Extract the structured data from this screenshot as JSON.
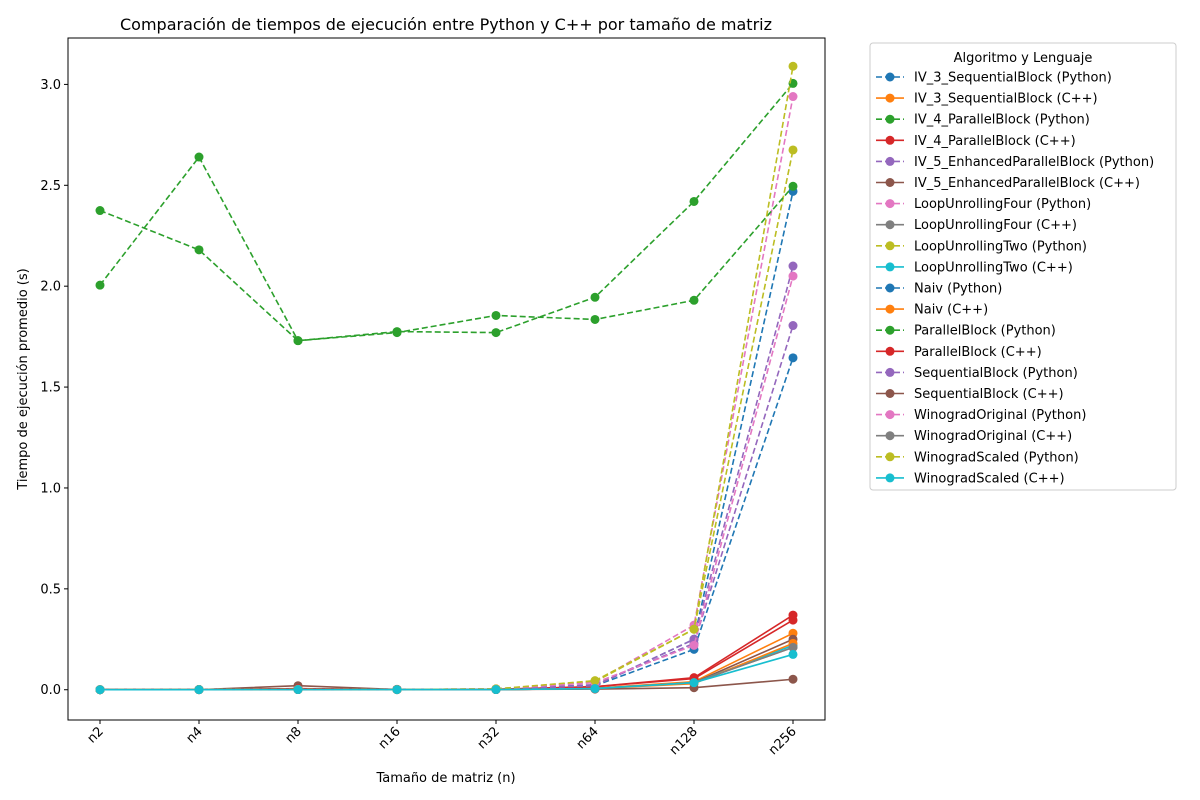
{
  "chart_data": {
    "type": "line",
    "title": "Comparación de tiempos de ejecución entre Python y C++ por tamaño de matriz",
    "xlabel": "Tamaño de matriz (n)",
    "ylabel": "Tiempo de ejecución promedio (s)",
    "categories": [
      "n2",
      "n4",
      "n8",
      "n16",
      "n32",
      "n64",
      "n128",
      "n256"
    ],
    "ylim": [
      -0.15,
      3.23
    ],
    "yticks": [
      0.0,
      0.5,
      1.0,
      1.5,
      2.0,
      2.5,
      3.0
    ],
    "ytick_labels": [
      "0.0",
      "0.5",
      "1.0",
      "1.5",
      "2.0",
      "2.5",
      "3.0"
    ],
    "legend_title": "Algoritmo y Lenguaje",
    "legend_position": "outside-right",
    "series": [
      {
        "name": "IV_3_SequentialBlock (Python)",
        "color": "#1f77b4",
        "dashed": true,
        "values": [
          0.0005,
          0.001,
          0.002,
          0.001,
          0.002,
          0.02,
          0.25,
          2.47
        ]
      },
      {
        "name": "IV_3_SequentialBlock (C++)",
        "color": "#ff7f0e",
        "dashed": false,
        "values": [
          0.0002,
          0.0003,
          0.001,
          0.0008,
          0.001,
          0.008,
          0.04,
          0.28
        ]
      },
      {
        "name": "IV_4_ParallelBlock (Python)",
        "color": "#2ca02c",
        "dashed": true,
        "values": [
          2.375,
          2.18,
          1.73,
          1.775,
          1.77,
          1.945,
          2.42,
          3.005
        ]
      },
      {
        "name": "IV_4_ParallelBlock (C++)",
        "color": "#d62728",
        "dashed": false,
        "values": [
          0.0005,
          0.001,
          0.005,
          0.002,
          0.002,
          0.015,
          0.06,
          0.37
        ]
      },
      {
        "name": "IV_5_EnhancedParallelBlock (Python)",
        "color": "#9467bd",
        "dashed": true,
        "values": [
          0.0005,
          0.001,
          0.002,
          0.001,
          0.003,
          0.025,
          0.23,
          1.805
        ]
      },
      {
        "name": "IV_5_EnhancedParallelBlock (C++)",
        "color": "#8c564b",
        "dashed": false,
        "values": [
          0.0002,
          0.0003,
          0.02,
          0.0008,
          0.001,
          0.005,
          0.035,
          0.25
        ]
      },
      {
        "name": "LoopUnrollingFour (Python)",
        "color": "#e377c2",
        "dashed": true,
        "values": [
          0.0005,
          0.001,
          0.002,
          0.001,
          0.004,
          0.04,
          0.32,
          2.94
        ]
      },
      {
        "name": "LoopUnrollingFour (C++)",
        "color": "#7f7f7f",
        "dashed": false,
        "values": [
          0.0002,
          0.0003,
          0.001,
          0.0008,
          0.001,
          0.006,
          0.035,
          0.21
        ]
      },
      {
        "name": "LoopUnrollingTwo (Python)",
        "color": "#bcbd22",
        "dashed": true,
        "values": [
          0.0005,
          0.001,
          0.002,
          0.001,
          0.004,
          0.04,
          0.3,
          2.675
        ]
      },
      {
        "name": "LoopUnrollingTwo (C++)",
        "color": "#17becf",
        "dashed": false,
        "values": [
          0.0002,
          0.0003,
          0.001,
          0.0008,
          0.001,
          0.006,
          0.035,
          0.22
        ]
      },
      {
        "name": "Naiv (Python)",
        "color": "#1f77b4",
        "dashed": true,
        "values": [
          0.0005,
          0.001,
          0.002,
          0.001,
          0.003,
          0.02,
          0.2,
          1.645
        ]
      },
      {
        "name": "Naiv (C++)",
        "color": "#ff7f0e",
        "dashed": false,
        "values": [
          0.0002,
          0.0003,
          0.001,
          0.0008,
          0.001,
          0.006,
          0.03,
          0.23
        ]
      },
      {
        "name": "ParallelBlock (Python)",
        "color": "#2ca02c",
        "dashed": true,
        "values": [
          2.005,
          2.64,
          1.73,
          1.77,
          1.855,
          1.835,
          1.93,
          2.495
        ]
      },
      {
        "name": "ParallelBlock (C++)",
        "color": "#d62728",
        "dashed": false,
        "values": [
          0.0005,
          0.001,
          0.005,
          0.002,
          0.002,
          0.015,
          0.055,
          0.345
        ]
      },
      {
        "name": "SequentialBlock (Python)",
        "color": "#9467bd",
        "dashed": true,
        "values": [
          0.0005,
          0.001,
          0.002,
          0.001,
          0.003,
          0.02,
          0.25,
          2.1
        ]
      },
      {
        "name": "SequentialBlock (C++)",
        "color": "#8c564b",
        "dashed": false,
        "values": [
          0.0002,
          0.0003,
          0.001,
          0.0008,
          0.001,
          0.003,
          0.01,
          0.052
        ]
      },
      {
        "name": "WinogradOriginal (Python)",
        "color": "#e377c2",
        "dashed": true,
        "values": [
          0.0005,
          0.001,
          0.002,
          0.001,
          0.004,
          0.035,
          0.22,
          2.05
        ]
      },
      {
        "name": "WinogradOriginal (C++)",
        "color": "#7f7f7f",
        "dashed": false,
        "values": [
          0.0002,
          0.0003,
          0.001,
          0.0008,
          0.001,
          0.006,
          0.035,
          0.21
        ]
      },
      {
        "name": "WinogradScaled (Python)",
        "color": "#bcbd22",
        "dashed": true,
        "values": [
          0.0005,
          0.001,
          0.002,
          0.001,
          0.004,
          0.045,
          0.3,
          3.09
        ]
      },
      {
        "name": "WinogradScaled (C++)",
        "color": "#17becf",
        "dashed": false,
        "values": [
          0.0002,
          0.0003,
          0.001,
          0.0008,
          0.001,
          0.006,
          0.035,
          0.175
        ]
      }
    ]
  }
}
